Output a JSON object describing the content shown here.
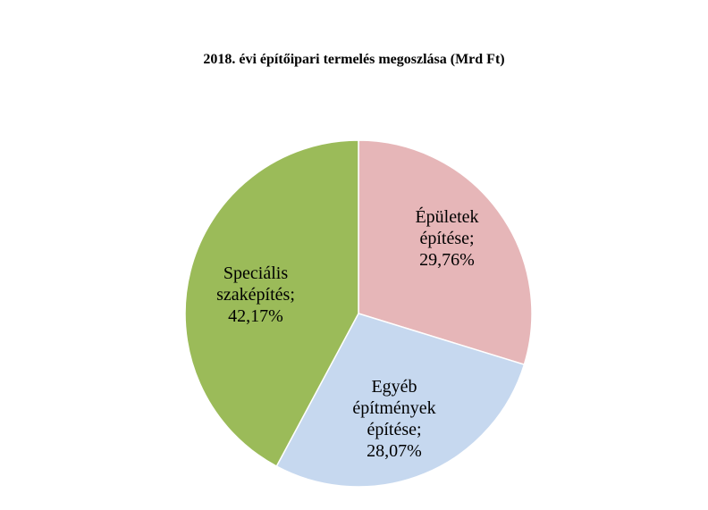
{
  "chart_data": {
    "type": "pie",
    "title": "2018. évi építőipari termelés megoszlása (Mrd Ft)",
    "slices": [
      {
        "name": "Épületek építése",
        "value": 29.76,
        "label_lines": [
          "Épületek",
          "építése;",
          "29,76%"
        ],
        "color": "#e6b6b8"
      },
      {
        "name": "Egyéb építmények építése",
        "value": 28.07,
        "label_lines": [
          "Egyéb",
          "építmények",
          "építése;",
          "28,07%"
        ],
        "color": "#c6d8ef"
      },
      {
        "name": "Speciális szaképítés",
        "value": 42.17,
        "label_lines": [
          "Speciális",
          "szaképítés;",
          "42,17%"
        ],
        "color": "#9bbb59"
      }
    ],
    "start_angle": "12 o'clock",
    "direction": "clockwise",
    "legend": "none"
  }
}
